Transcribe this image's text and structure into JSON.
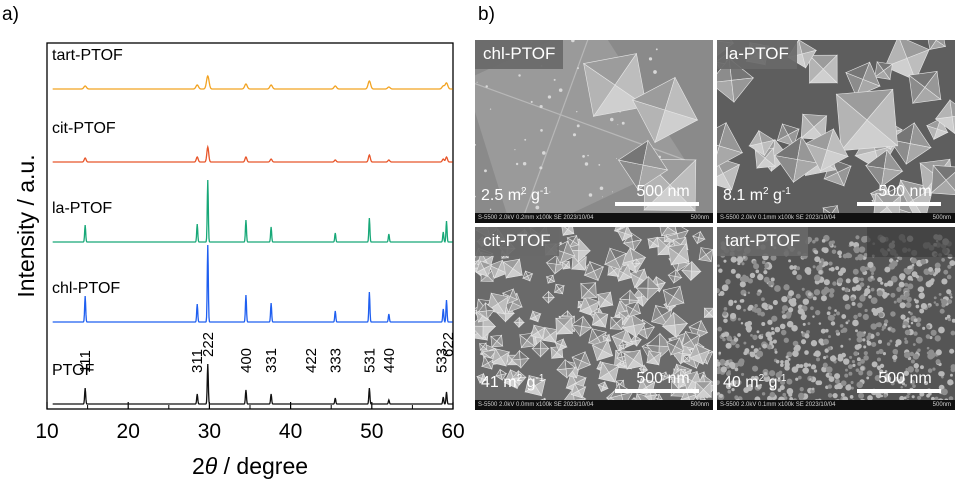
{
  "panel_a_label": "a)",
  "panel_b_label": "b)",
  "chart_data": {
    "type": "line",
    "title": "",
    "xlabel_prefix": "2",
    "xlabel_theta": "θ",
    "xlabel_suffix": " / degree",
    "ylabel": "Intensity / a.u.",
    "xlim": [
      10,
      60
    ],
    "xticks": [
      10,
      20,
      30,
      40,
      50,
      60
    ],
    "xtick_labels": [
      "10",
      "20",
      "30",
      "40",
      "50",
      "60"
    ],
    "grid": false,
    "series_order_bottom_to_top": [
      "PTOF",
      "chl-PTOF",
      "la-PTOF",
      "cit-PTOF",
      "tart-PTOF"
    ],
    "series": [
      {
        "name": "PTOF",
        "color": "#111111",
        "offset": 0,
        "width": 0.09,
        "peaks": [
          [
            14.7,
            16
          ],
          [
            28.5,
            10
          ],
          [
            29.8,
            40
          ],
          [
            34.5,
            14
          ],
          [
            37.6,
            10
          ],
          [
            45.5,
            6
          ],
          [
            49.7,
            16
          ],
          [
            52.1,
            4
          ],
          [
            58.8,
            7
          ],
          [
            59.2,
            12
          ]
        ]
      },
      {
        "name": "chl-PTOF",
        "color": "#1f5ff0",
        "offset": 82,
        "width": 0.09,
        "peaks": [
          [
            14.7,
            26
          ],
          [
            28.5,
            18
          ],
          [
            29.8,
            77
          ],
          [
            34.5,
            27
          ],
          [
            37.6,
            19
          ],
          [
            45.5,
            11
          ],
          [
            49.7,
            30
          ],
          [
            52.1,
            8
          ],
          [
            58.8,
            13
          ],
          [
            59.2,
            22
          ]
        ]
      },
      {
        "name": "la-PTOF",
        "color": "#18a878",
        "offset": 162,
        "width": 0.09,
        "peaks": [
          [
            14.7,
            17
          ],
          [
            28.5,
            18
          ],
          [
            29.8,
            62
          ],
          [
            34.5,
            22
          ],
          [
            37.6,
            15
          ],
          [
            45.5,
            9
          ],
          [
            49.7,
            24
          ],
          [
            52.1,
            8
          ],
          [
            58.8,
            10
          ],
          [
            59.2,
            21
          ]
        ]
      },
      {
        "name": "cit-PTOF",
        "color": "#e8562a",
        "offset": 242,
        "width": 0.16,
        "peaks": [
          [
            14.7,
            4
          ],
          [
            28.5,
            5
          ],
          [
            29.8,
            15
          ],
          [
            34.5,
            5
          ],
          [
            37.6,
            3
          ],
          [
            45.5,
            2
          ],
          [
            49.7,
            7
          ],
          [
            52.1,
            2
          ],
          [
            58.8,
            3
          ],
          [
            59.2,
            5
          ]
        ]
      },
      {
        "name": "tart-PTOF",
        "color": "#f2a322",
        "offset": 315,
        "width": 0.22,
        "peaks": [
          [
            14.7,
            3
          ],
          [
            28.5,
            4
          ],
          [
            29.8,
            13
          ],
          [
            34.5,
            5
          ],
          [
            37.6,
            4
          ],
          [
            45.5,
            3
          ],
          [
            49.7,
            8
          ],
          [
            52.1,
            2
          ],
          [
            58.8,
            3
          ],
          [
            59.2,
            6
          ]
        ]
      }
    ],
    "reflections": [
      {
        "hkl": "111",
        "two_theta": 14.7
      },
      {
        "hkl": "311",
        "two_theta": 28.5
      },
      {
        "hkl": "222",
        "two_theta": 29.8
      },
      {
        "hkl": "400",
        "two_theta": 34.5
      },
      {
        "hkl": "331",
        "two_theta": 37.6
      },
      {
        "hkl": "422",
        "two_theta": 42.5
      },
      {
        "hkl": "333",
        "two_theta": 45.5
      },
      {
        "hkl": "531",
        "two_theta": 49.7
      },
      {
        "hkl": "440",
        "two_theta": 52.1
      },
      {
        "hkl": "533",
        "two_theta": 58.6
      },
      {
        "hkl": "622",
        "two_theta": 59.4
      }
    ]
  },
  "sem_images": [
    {
      "name": "chl-PTOF",
      "area_value": "2.5 m",
      "area_exp": "2",
      "area_unit": " g",
      "area_unit_exp": "-1",
      "scale_bar": "500 nm",
      "footer_left": "S-5500 2.0kV 0.2mm x100k SE 2023/10/04",
      "footer_right": "500nm",
      "texture": "large-octahedra",
      "bg": "#8a8a8a"
    },
    {
      "name": "la-PTOF",
      "area_value": "8.1 m",
      "area_exp": "2",
      "area_unit": " g",
      "area_unit_exp": "-1",
      "scale_bar": "500 nm",
      "footer_left": "S-5500 2.0kV 0.1mm x100k SE 2023/10/04",
      "footer_right": "500nm",
      "texture": "medium-octahedra",
      "bg": "#5e5e5e"
    },
    {
      "name": "cit-PTOF",
      "area_value": "41 m",
      "area_exp": "2",
      "area_unit": " g",
      "area_unit_exp": "-1",
      "scale_bar": "500 nm",
      "footer_left": "S-5500 2.0kV 0.0mm x100k SE 2023/10/04",
      "footer_right": "500nm",
      "texture": "small-crystals",
      "bg": "#6a6a6a"
    },
    {
      "name": "tart-PTOF",
      "area_value": "40 m",
      "area_exp": "2",
      "area_unit": " g",
      "area_unit_exp": "-1",
      "scale_bar": "500 nm",
      "footer_left": "S-5500 2.0kV 0.1mm x100k SE 2023/10/04",
      "footer_right": "500nm",
      "texture": "fine-particles",
      "bg": "#555555"
    }
  ]
}
